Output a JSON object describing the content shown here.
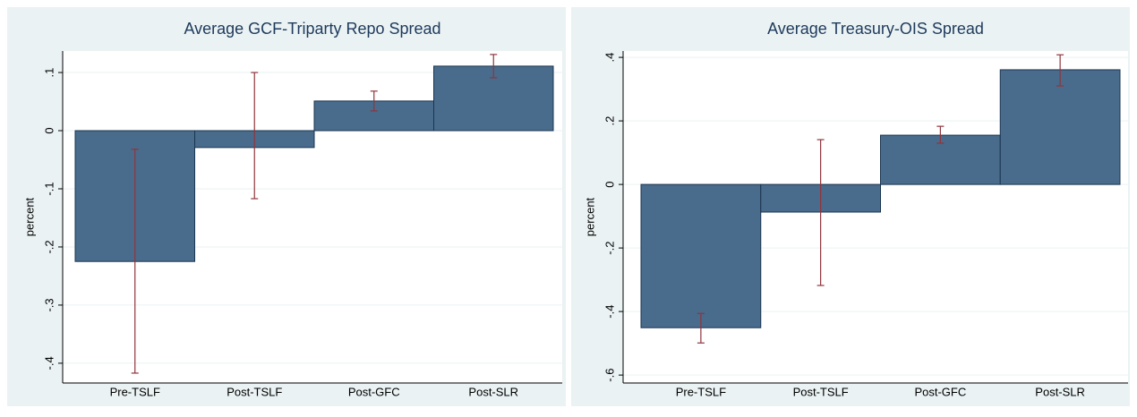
{
  "chart_data": [
    {
      "type": "bar",
      "title": "Average GCF-Triparty Repo Spread",
      "y_label": "percent",
      "categories": [
        "Pre-TSLF",
        "Post-TSLF",
        "Post-GFC",
        "Post-SLR"
      ],
      "values": [
        -0.225,
        -0.029,
        0.051,
        0.111
      ],
      "ci_low": [
        -0.417,
        -0.117,
        0.034,
        0.091
      ],
      "ci_high": [
        -0.032,
        0.1,
        0.068,
        0.131
      ],
      "ylim": [
        -0.434,
        0.137
      ],
      "yticks": [
        {
          "value": -0.4,
          "label": "-.4"
        },
        {
          "value": -0.3,
          "label": "-.3"
        },
        {
          "value": -0.2,
          "label": "-.2"
        },
        {
          "value": -0.1,
          "label": "-.1"
        },
        0,
        {
          "value": 0.1,
          "label": ".1"
        }
      ],
      "grid": true,
      "color": "#496b8c",
      "error_color": "#90353b"
    },
    {
      "type": "bar",
      "title": "Average Treasury-OIS Spread",
      "y_label": "percent",
      "categories": [
        "Pre-TSLF",
        "Post-TSLF",
        "Post-GFC",
        "Post-SLR"
      ],
      "values": [
        -0.451,
        -0.087,
        0.155,
        0.361
      ],
      "ci_low": [
        -0.499,
        -0.318,
        0.13,
        0.31
      ],
      "ci_high": [
        -0.406,
        0.141,
        0.183,
        0.408
      ],
      "ylim": [
        -0.625,
        0.42
      ],
      "yticks": [
        {
          "value": -0.6,
          "label": "-.6"
        },
        {
          "value": -0.4,
          "label": "-.4"
        },
        {
          "value": -0.2,
          "label": "-.2"
        },
        0,
        {
          "value": 0.2,
          "label": ".2"
        },
        {
          "value": 0.4,
          "label": ".4"
        }
      ],
      "grid": true,
      "color": "#496b8c",
      "error_color": "#90353b"
    }
  ]
}
